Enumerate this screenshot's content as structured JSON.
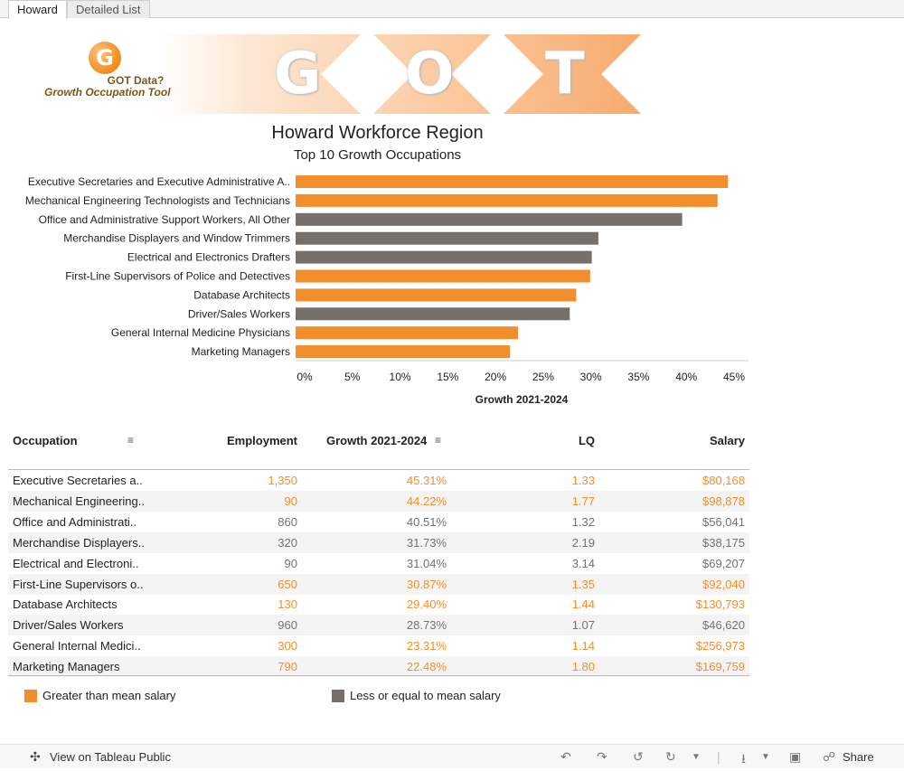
{
  "tabs": [
    {
      "label": "Howard"
    },
    {
      "label": "Detailed List"
    }
  ],
  "banner": {
    "logo_letter": "G",
    "logo_line1": "GOT Data?",
    "logo_line2": "Growth Occupation Tool",
    "letters": [
      "G",
      "O",
      "T"
    ]
  },
  "header": {
    "title": "Howard Workforce Region",
    "subtitle": "Top 10 Growth Occupations"
  },
  "colors": {
    "above": "#f28e2b",
    "below": "#76706d"
  },
  "chart_data": {
    "type": "bar",
    "orientation": "horizontal",
    "title": "Howard Workforce Region",
    "subtitle": "Top 10 Growth Occupations",
    "xlabel": "Growth 2021-2024",
    "ylabel": "",
    "xlim": [
      0,
      45
    ],
    "ticks": [
      "0%",
      "5%",
      "10%",
      "15%",
      "20%",
      "25%",
      "30%",
      "35%",
      "40%",
      "45%"
    ],
    "categories": [
      "Executive Secretaries and Executive Administrative A..",
      "Mechanical Engineering Technologists and Technicians",
      "Office and Administrative Support Workers, All Other",
      "Merchandise Displayers and Window Trimmers",
      "Electrical and Electronics Drafters",
      "First-Line Supervisors of Police and Detectives",
      "Database Architects",
      "Driver/Sales Workers",
      "General Internal Medicine Physicians",
      "Marketing Managers"
    ],
    "values": [
      45.31,
      44.22,
      40.51,
      31.73,
      31.04,
      30.87,
      29.4,
      28.73,
      23.31,
      22.48
    ],
    "groups": [
      "above",
      "above",
      "below",
      "below",
      "below",
      "above",
      "above",
      "below",
      "above",
      "above"
    ]
  },
  "table": {
    "headers": {
      "occupation": "Occupation",
      "employment": "Employment",
      "growth": "Growth 2021-2024",
      "lq": "LQ",
      "salary": "Salary"
    },
    "rows": [
      {
        "name": "Executive Secretaries a..",
        "employment": "1,350",
        "growth": "45.31%",
        "lq": "1.33",
        "salary": "$80,168",
        "group": "above"
      },
      {
        "name": "Mechanical Engineering..",
        "employment": "90",
        "growth": "44.22%",
        "lq": "1.77",
        "salary": "$98,878",
        "group": "above"
      },
      {
        "name": "Office and Administrati..",
        "employment": "860",
        "growth": "40.51%",
        "lq": "1.32",
        "salary": "$56,041",
        "group": "below"
      },
      {
        "name": "Merchandise Displayers..",
        "employment": "320",
        "growth": "31.73%",
        "lq": "2.19",
        "salary": "$38,175",
        "group": "below"
      },
      {
        "name": "Electrical and Electroni..",
        "employment": "90",
        "growth": "31.04%",
        "lq": "3.14",
        "salary": "$69,207",
        "group": "below"
      },
      {
        "name": "First-Line Supervisors o..",
        "employment": "650",
        "growth": "30.87%",
        "lq": "1.35",
        "salary": "$92,040",
        "group": "above"
      },
      {
        "name": "Database Architects",
        "employment": "130",
        "growth": "29.40%",
        "lq": "1.44",
        "salary": "$130,793",
        "group": "above"
      },
      {
        "name": "Driver/Sales Workers",
        "employment": "960",
        "growth": "28.73%",
        "lq": "1.07",
        "salary": "$46,620",
        "group": "below"
      },
      {
        "name": "General Internal Medici..",
        "employment": "300",
        "growth": "23.31%",
        "lq": "1.14",
        "salary": "$256,973",
        "group": "above"
      },
      {
        "name": "Marketing Managers",
        "employment": "790",
        "growth": "22.48%",
        "lq": "1.80",
        "salary": "$169,759",
        "group": "above"
      }
    ]
  },
  "legend": {
    "above": "Greater than mean salary",
    "below": "Less or equal to mean salary"
  },
  "footer": {
    "view_label": "View on Tableau Public",
    "share_label": "Share"
  }
}
